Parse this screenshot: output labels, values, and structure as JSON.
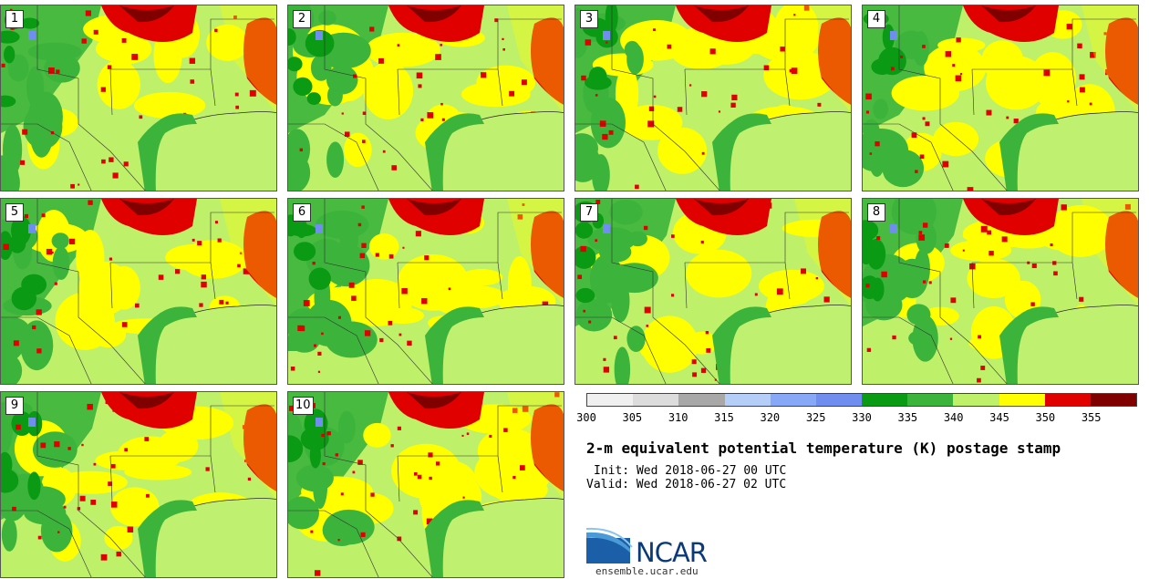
{
  "panels": [
    {
      "label": "1"
    },
    {
      "label": "2"
    },
    {
      "label": "3"
    },
    {
      "label": "4"
    },
    {
      "label": "5"
    },
    {
      "label": "6"
    },
    {
      "label": "7"
    },
    {
      "label": "8"
    },
    {
      "label": "9"
    },
    {
      "label": "10"
    }
  ],
  "colorbar": {
    "colors": [
      "#f0f0f0",
      "#dcdcdc",
      "#a8a8a8",
      "#b4cef8",
      "#86a8f6",
      "#6f8ef0",
      "#0a9a14",
      "#3cb43c",
      "#bff06a",
      "#ffff00",
      "#e00000",
      "#800000"
    ],
    "tick_labels": [
      "300",
      "305",
      "310",
      "315",
      "320",
      "325",
      "330",
      "335",
      "340",
      "345",
      "350",
      "355"
    ]
  },
  "title": "2-m equivalent potential temperature (K) postage stamp",
  "init": "Init: Wed 2018-06-27 00 UTC",
  "valid": "Valid: Wed 2018-06-27 02 UTC",
  "logo": {
    "text": "NCAR",
    "url": "ensemble.ucar.edu"
  }
}
